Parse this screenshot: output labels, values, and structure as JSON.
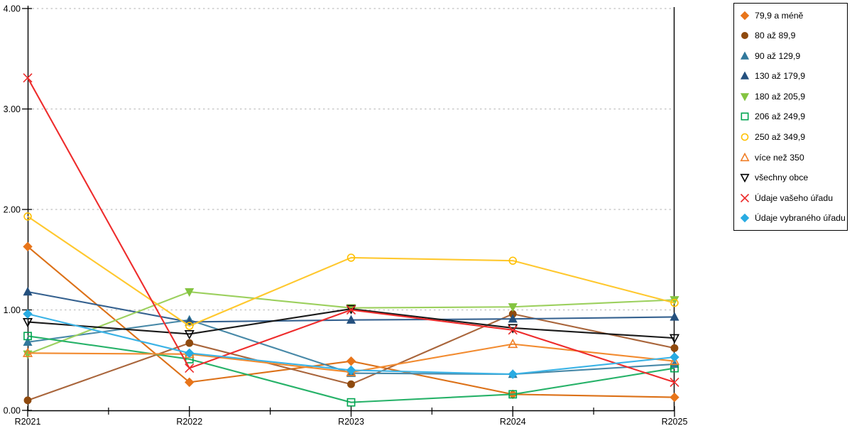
{
  "chart_data": {
    "type": "line",
    "title": "",
    "x_labels": [
      "R2021",
      "R2022",
      "R2023",
      "R2024",
      "R2025"
    ],
    "y_tick_labels": [
      "0.00",
      "1.00",
      "2.00",
      "3.00",
      "4.00"
    ],
    "ylim": [
      0,
      4
    ],
    "grid": "dotted-horizontal",
    "gridline_color": "#BFBFBF",
    "axis_color": "#000000",
    "legend_position": "right-outside",
    "series": [
      {
        "name": "79,9 a méně",
        "color": "#E8751A",
        "line_color": "#DC7118",
        "marker": "diamond",
        "filled": true,
        "values": [
          1.63,
          0.28,
          0.49,
          0.16,
          0.13
        ]
      },
      {
        "name": "80 až 89,9",
        "color": "#8F4A0E",
        "line_color": "#A9653B",
        "marker": "circle",
        "filled": true,
        "values": [
          0.1,
          0.67,
          0.26,
          0.96,
          0.62
        ]
      },
      {
        "name": "90 až 129,9",
        "color": "#31789C",
        "line_color": "#4889A8",
        "marker": "triangle-up",
        "filled": true,
        "values": [
          0.68,
          0.9,
          0.37,
          0.36,
          0.46
        ]
      },
      {
        "name": "130 až 179,9",
        "color": "#24507E",
        "line_color": "#35618F",
        "marker": "triangle-up",
        "filled": true,
        "values": [
          1.18,
          0.88,
          0.9,
          0.91,
          0.93
        ]
      },
      {
        "name": "180 až 205,9",
        "color": "#84C441",
        "line_color": "#9CD05E",
        "marker": "triangle-down",
        "filled": true,
        "values": [
          0.56,
          1.18,
          1.02,
          1.03,
          1.1
        ]
      },
      {
        "name": "206 až 249,9",
        "color": "#00A550",
        "line_color": "#27B269",
        "marker": "square",
        "filled": false,
        "values": [
          0.74,
          0.51,
          0.08,
          0.16,
          0.42
        ]
      },
      {
        "name": "250 až 349,9",
        "color": "#FFC000",
        "line_color": "#FFC82E",
        "marker": "circle",
        "filled": false,
        "values": [
          1.93,
          0.84,
          1.52,
          1.49,
          1.07
        ]
      },
      {
        "name": "více než 350",
        "color": "#F07E26",
        "line_color": "#F28B30",
        "marker": "triangle-up",
        "filled": false,
        "values": [
          0.57,
          0.56,
          0.38,
          0.66,
          0.49
        ]
      },
      {
        "name": "všechny obce",
        "color": "#000000",
        "line_color": "#1A1A1A",
        "marker": "triangle-down",
        "filled": false,
        "values": [
          0.88,
          0.76,
          1.01,
          0.82,
          0.72
        ]
      },
      {
        "name": "Údaje vašeho úřadu",
        "color": "#EC2B2B",
        "line_color": "#EE2C2C",
        "marker": "x",
        "filled": false,
        "values": [
          3.31,
          0.42,
          1.0,
          0.8,
          0.28
        ]
      },
      {
        "name": "Údaje vybraného úřadu",
        "color": "#29ABE2",
        "line_color": "#3BB3E6",
        "marker": "diamond",
        "filled": true,
        "values": [
          0.96,
          0.57,
          0.4,
          0.36,
          0.53
        ]
      }
    ]
  }
}
